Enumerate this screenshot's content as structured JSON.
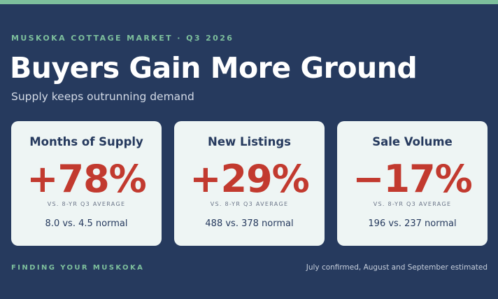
{
  "header": {
    "kicker": "MUSKOKA COTTAGE MARKET · Q3 2026",
    "title": "Buyers Gain More Ground",
    "subtitle": "Supply keeps outrunning demand"
  },
  "cards": [
    {
      "title": "Months of Supply",
      "value": "+78%",
      "caption": "VS. 8-YR Q3 AVERAGE",
      "detail": "8.0 vs. 4.5 normal"
    },
    {
      "title": "New Listings",
      "value": "+29%",
      "caption": "VS. 8-YR Q3 AVERAGE",
      "detail": "488 vs. 378 normal"
    },
    {
      "title": "Sale Volume",
      "value": "−17%",
      "caption": "VS. 8-YR Q3 AVERAGE",
      "detail": "196 vs. 237 normal"
    }
  ],
  "footer": {
    "brand": "FINDING YOUR MUSKOKA",
    "note": "July confirmed, August and September estimated"
  },
  "colors": {
    "background": "#263a5e",
    "accent": "#7dbf9c",
    "card": "#eef5f4",
    "value": "#c23a2f"
  }
}
